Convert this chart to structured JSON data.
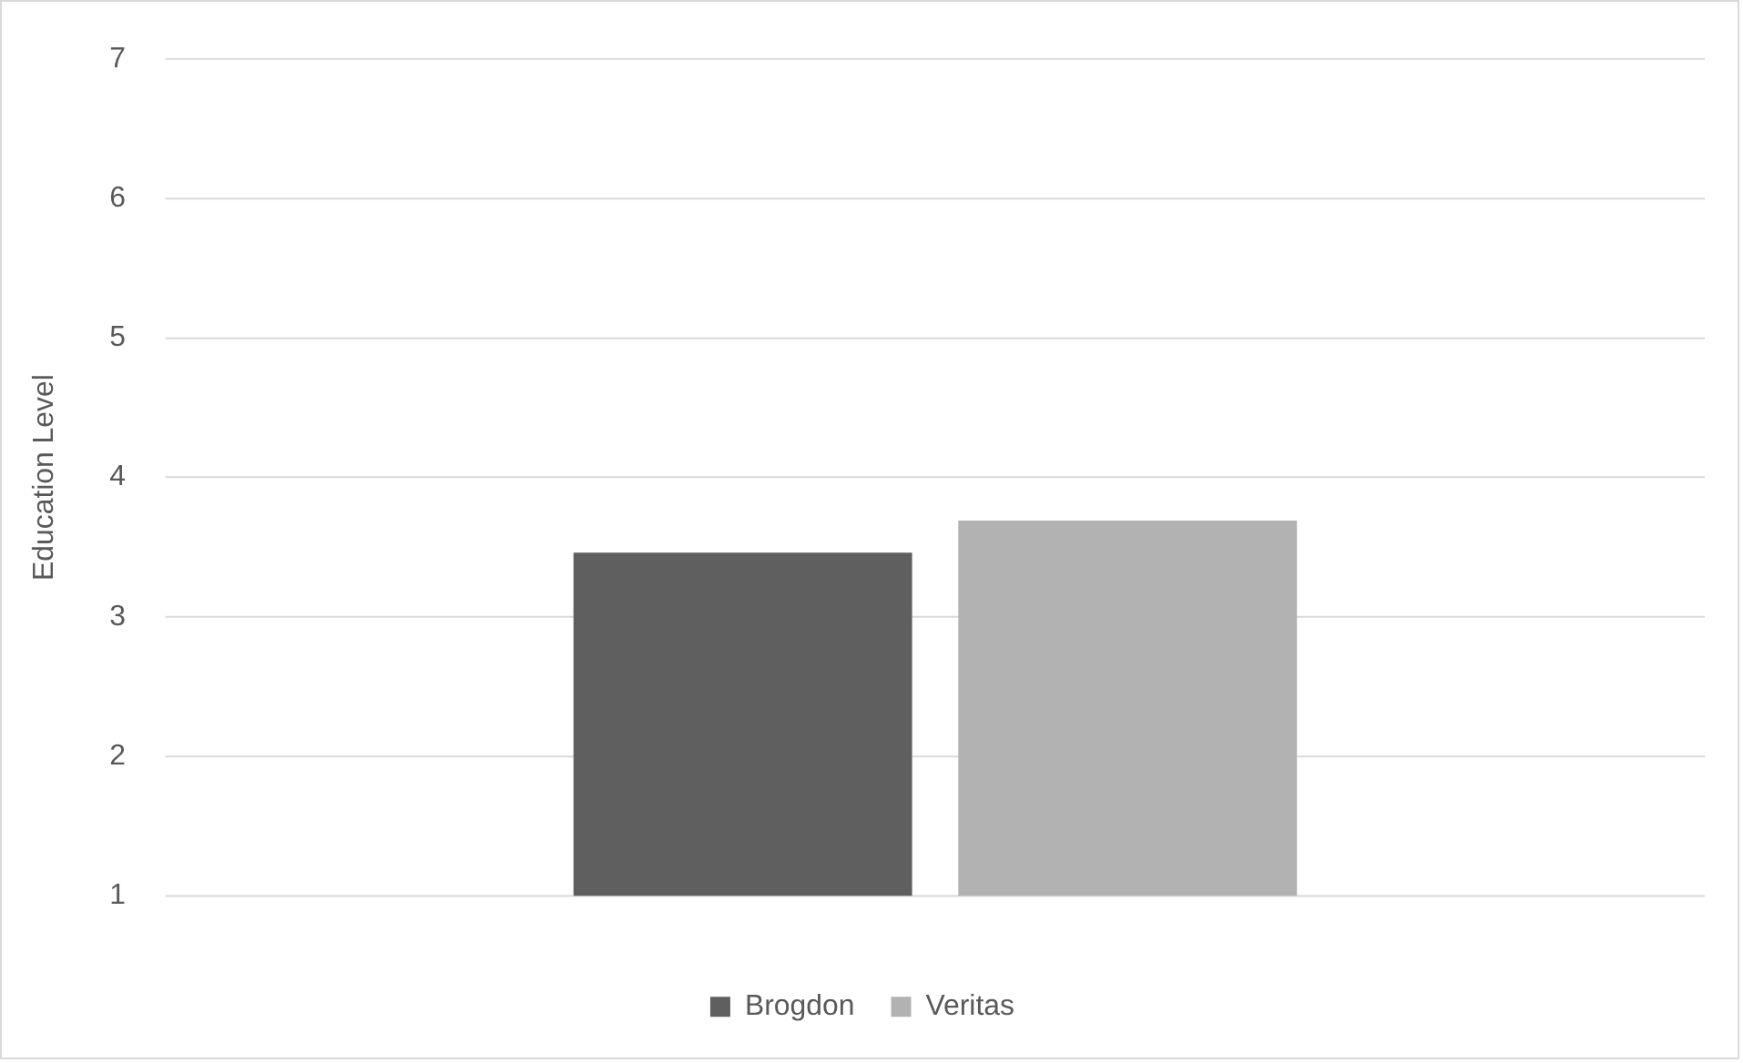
{
  "chart_data": {
    "type": "bar",
    "ylabel": "Education Level",
    "categories": [
      null
    ],
    "series": [
      {
        "name": "Brogdon",
        "color": "#5f5f5f",
        "values": [
          3.46
        ]
      },
      {
        "name": "Veritas",
        "color": "#b2b2b2",
        "values": [
          3.69
        ]
      }
    ],
    "ylim": [
      1,
      7
    ],
    "yticks": [
      1,
      2,
      3,
      4,
      5,
      6,
      7
    ],
    "grid": "y",
    "legend": "bottom"
  }
}
